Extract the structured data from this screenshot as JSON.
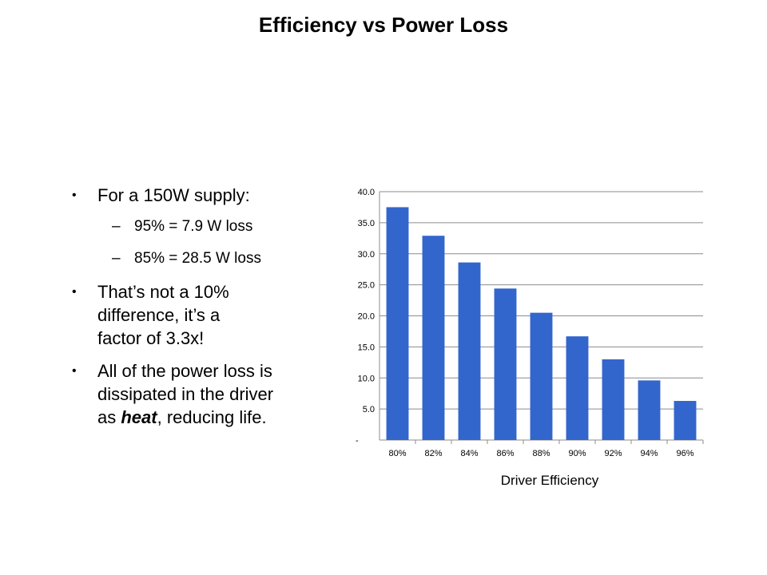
{
  "slide": {
    "title": "Efficiency vs Power Loss"
  },
  "bullets": {
    "b1": "For a 150W supply:",
    "b1_sub1": "95% = 7.9 W loss",
    "b1_sub2": "85% = 28.5 W loss",
    "b2_line1": "That’s not a 10%",
    "b2_line2": "difference, it’s a",
    "b2_line3": "factor of 3.3x!",
    "b3_line1": "All of the power loss is",
    "b3_line2": "dissipated in the driver",
    "b3_prefix": "as ",
    "b3_emph": "heat",
    "b3_suffix": ", reducing life.",
    "dash": "–",
    "dot": "•"
  },
  "colors": {
    "bar": "#3366cc",
    "grid": "#8c8c8c",
    "axis": "#8c8c8c"
  },
  "chart_data": {
    "type": "bar",
    "title": "",
    "xlabel": "Driver Efficiency",
    "ylabel": "",
    "categories": [
      "80%",
      "82%",
      "84%",
      "86%",
      "88%",
      "90%",
      "92%",
      "94%",
      "96%"
    ],
    "values": [
      37.5,
      32.9,
      28.6,
      24.4,
      20.5,
      16.7,
      13.0,
      9.6,
      6.3
    ],
    "ylim": [
      0,
      40
    ],
    "yticks": [
      "-",
      "5.0",
      "10.0",
      "15.0",
      "20.0",
      "25.0",
      "30.0",
      "35.0",
      "40.0"
    ],
    "ytick_values": [
      0,
      5,
      10,
      15,
      20,
      25,
      30,
      35,
      40
    ],
    "grid": true,
    "legend": "none"
  }
}
